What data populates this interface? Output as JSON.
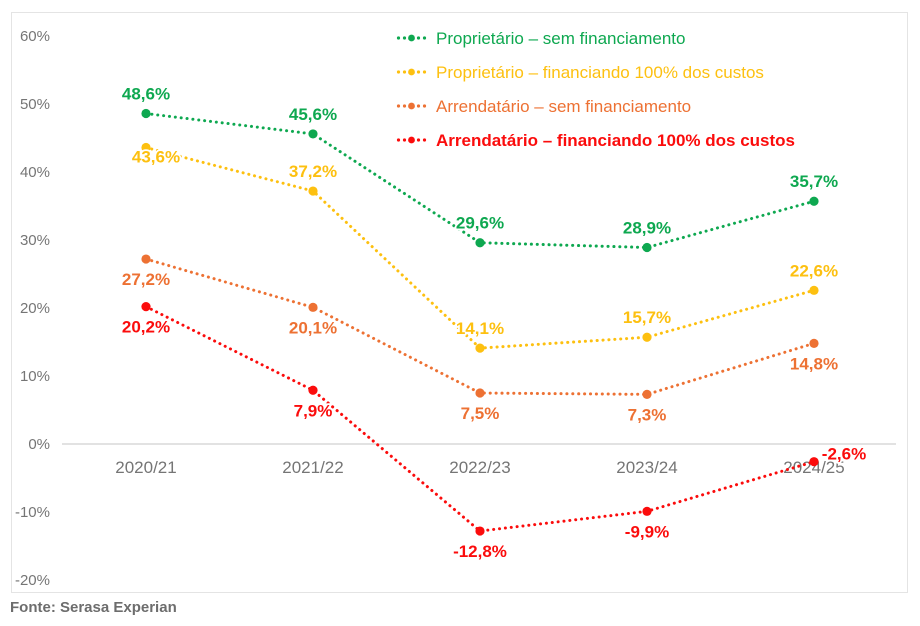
{
  "footer": {
    "source_label": "Fonte: Serasa Experian"
  },
  "colors": {
    "green": "#0EA850",
    "yellow": "#FDC010",
    "orange": "#ED7133",
    "red": "#FB0C0C",
    "axis_text": "#757575",
    "grid_line": "#d8d8d8",
    "panel_border": "#e4e4e4",
    "footer_text": "#6d6d6d"
  },
  "chart_data": {
    "type": "line",
    "line_style": "dotted",
    "categories": [
      "2020/21",
      "2021/22",
      "2022/23",
      "2023/24",
      "2024/25"
    ],
    "series": [
      {
        "name": "Proprietário – sem financiamento",
        "color_key": "green",
        "values": [
          48.6,
          45.6,
          29.6,
          28.9,
          35.7
        ],
        "labels": [
          "48,6%",
          "45,6%",
          "29,6%",
          "28,9%",
          "35,7%"
        ],
        "bold_legend": false
      },
      {
        "name": "Proprietário – financiando 100% dos custos",
        "color_key": "yellow",
        "values": [
          43.6,
          37.2,
          14.1,
          15.7,
          22.6
        ],
        "labels": [
          "43,6%",
          "37,2%",
          "14,1%",
          "15,7%",
          "22,6%"
        ],
        "bold_legend": false
      },
      {
        "name": "Arrendatário – sem financiamento",
        "color_key": "orange",
        "values": [
          27.2,
          20.1,
          7.5,
          7.3,
          14.8
        ],
        "labels": [
          "27,2%",
          "20,1%",
          "7,5%",
          "7,3%",
          "14,8%"
        ],
        "bold_legend": false
      },
      {
        "name": "Arrendatário – financiando 100% dos custos",
        "color_key": "red",
        "values": [
          20.2,
          7.9,
          -12.8,
          -9.9,
          -2.6
        ],
        "labels": [
          "20,2%",
          "7,9%",
          "-12,8%",
          "-9,9%",
          "-2,6%"
        ],
        "bold_legend": true
      }
    ],
    "y_ticks": [
      {
        "value": 60,
        "label": "60%"
      },
      {
        "value": 50,
        "label": "50%"
      },
      {
        "value": 40,
        "label": "40%"
      },
      {
        "value": 30,
        "label": "30%"
      },
      {
        "value": 20,
        "label": "20%"
      },
      {
        "value": 10,
        "label": "10%"
      },
      {
        "value": 0,
        "label": "0%"
      },
      {
        "value": -10,
        "label": "-10%"
      },
      {
        "value": -20,
        "label": "-20%"
      }
    ],
    "ylim": [
      -20,
      60
    ],
    "grid": "zero-line-only",
    "legend_position": "top-right",
    "value_labels": true,
    "decimal_separator": ","
  }
}
